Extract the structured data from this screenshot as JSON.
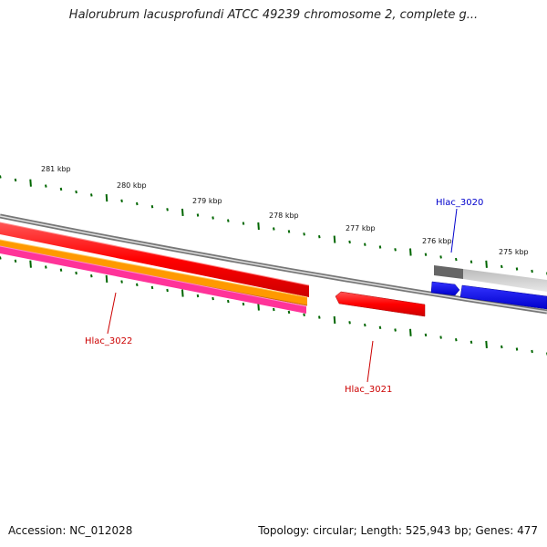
{
  "title": "Halorubrum lacusprofundi ATCC 49239 chromosome 2, complete g...",
  "footer": {
    "accession": "Accession: NC_012028",
    "summary": "Topology: circular; Length: 525,943 bp; Genes: 477"
  },
  "scale_labels": [
    "281 kbp",
    "280 kbp",
    "279 kbp",
    "278 kbp",
    "277 kbp",
    "276 kbp",
    "275 kbp"
  ],
  "genes": [
    {
      "name": "Hlac_3022",
      "color": "#cc0000"
    },
    {
      "name": "Hlac_3021",
      "color": "#cc0000"
    },
    {
      "name": "Hlac_3020",
      "color": "#0000cc"
    }
  ],
  "colors": {
    "forward_cds": "#ff0000",
    "reverse_cds": "#0000ff",
    "orange_track": "#ff9900",
    "pink_track": "#ff3399",
    "tick": "#006600",
    "backbone": "#888888"
  }
}
